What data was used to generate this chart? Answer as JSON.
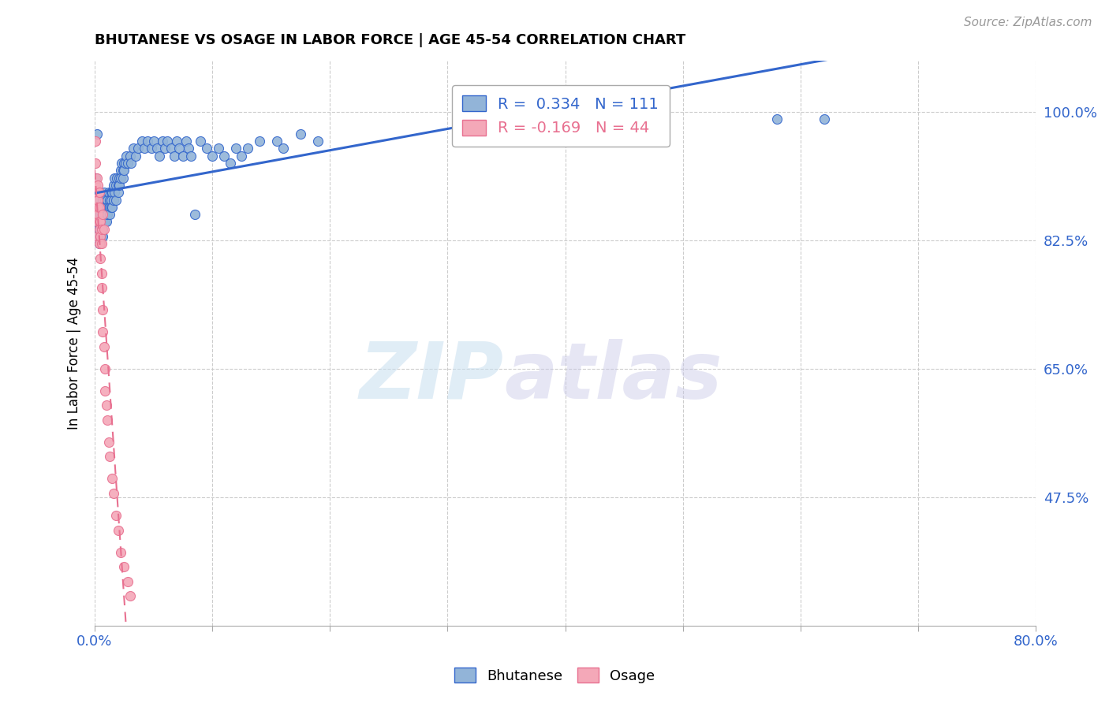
{
  "title": "BHUTANESE VS OSAGE IN LABOR FORCE | AGE 45-54 CORRELATION CHART",
  "source": "Source: ZipAtlas.com",
  "ylabel": "In Labor Force | Age 45-54",
  "ytick_labels": [
    "100.0%",
    "82.5%",
    "65.0%",
    "47.5%"
  ],
  "ytick_values": [
    1.0,
    0.825,
    0.65,
    0.475
  ],
  "xlim": [
    0.0,
    0.8
  ],
  "ylim": [
    0.3,
    1.07
  ],
  "blue_color": "#92B4D8",
  "pink_color": "#F4A8B8",
  "blue_line_color": "#3366CC",
  "pink_line_color": "#E87090",
  "legend_R_blue": "0.334",
  "legend_N_blue": "111",
  "legend_R_pink": "-0.169",
  "legend_N_pink": "44",
  "watermark_zip": "ZIP",
  "watermark_atlas": "atlas",
  "blue_points": [
    [
      0.001,
      0.91
    ],
    [
      0.002,
      0.97
    ],
    [
      0.002,
      0.88
    ],
    [
      0.002,
      0.85
    ],
    [
      0.003,
      0.86
    ],
    [
      0.003,
      0.84
    ],
    [
      0.003,
      0.83
    ],
    [
      0.004,
      0.85
    ],
    [
      0.004,
      0.84
    ],
    [
      0.004,
      0.83
    ],
    [
      0.004,
      0.82
    ],
    [
      0.005,
      0.86
    ],
    [
      0.005,
      0.85
    ],
    [
      0.005,
      0.84
    ],
    [
      0.005,
      0.83
    ],
    [
      0.005,
      0.82
    ],
    [
      0.006,
      0.87
    ],
    [
      0.006,
      0.86
    ],
    [
      0.006,
      0.85
    ],
    [
      0.006,
      0.84
    ],
    [
      0.006,
      0.83
    ],
    [
      0.007,
      0.88
    ],
    [
      0.007,
      0.87
    ],
    [
      0.007,
      0.86
    ],
    [
      0.007,
      0.84
    ],
    [
      0.007,
      0.83
    ],
    [
      0.008,
      0.89
    ],
    [
      0.008,
      0.87
    ],
    [
      0.008,
      0.86
    ],
    [
      0.008,
      0.85
    ],
    [
      0.009,
      0.88
    ],
    [
      0.009,
      0.87
    ],
    [
      0.009,
      0.86
    ],
    [
      0.009,
      0.85
    ],
    [
      0.01,
      0.87
    ],
    [
      0.01,
      0.86
    ],
    [
      0.01,
      0.85
    ],
    [
      0.011,
      0.88
    ],
    [
      0.011,
      0.87
    ],
    [
      0.011,
      0.86
    ],
    [
      0.012,
      0.89
    ],
    [
      0.012,
      0.87
    ],
    [
      0.013,
      0.88
    ],
    [
      0.013,
      0.87
    ],
    [
      0.013,
      0.86
    ],
    [
      0.014,
      0.89
    ],
    [
      0.014,
      0.88
    ],
    [
      0.014,
      0.87
    ],
    [
      0.015,
      0.89
    ],
    [
      0.015,
      0.87
    ],
    [
      0.016,
      0.9
    ],
    [
      0.016,
      0.88
    ],
    [
      0.017,
      0.91
    ],
    [
      0.017,
      0.89
    ],
    [
      0.018,
      0.9
    ],
    [
      0.018,
      0.88
    ],
    [
      0.019,
      0.91
    ],
    [
      0.02,
      0.9
    ],
    [
      0.02,
      0.89
    ],
    [
      0.021,
      0.91
    ],
    [
      0.021,
      0.9
    ],
    [
      0.022,
      0.92
    ],
    [
      0.022,
      0.91
    ],
    [
      0.023,
      0.93
    ],
    [
      0.024,
      0.92
    ],
    [
      0.024,
      0.91
    ],
    [
      0.025,
      0.93
    ],
    [
      0.025,
      0.92
    ],
    [
      0.026,
      0.93
    ],
    [
      0.027,
      0.94
    ],
    [
      0.028,
      0.93
    ],
    [
      0.03,
      0.94
    ],
    [
      0.031,
      0.93
    ],
    [
      0.033,
      0.95
    ],
    [
      0.035,
      0.94
    ],
    [
      0.037,
      0.95
    ],
    [
      0.04,
      0.96
    ],
    [
      0.042,
      0.95
    ],
    [
      0.045,
      0.96
    ],
    [
      0.048,
      0.95
    ],
    [
      0.05,
      0.96
    ],
    [
      0.053,
      0.95
    ],
    [
      0.055,
      0.94
    ],
    [
      0.058,
      0.96
    ],
    [
      0.06,
      0.95
    ],
    [
      0.062,
      0.96
    ],
    [
      0.065,
      0.95
    ],
    [
      0.068,
      0.94
    ],
    [
      0.07,
      0.96
    ],
    [
      0.072,
      0.95
    ],
    [
      0.075,
      0.94
    ],
    [
      0.078,
      0.96
    ],
    [
      0.08,
      0.95
    ],
    [
      0.082,
      0.94
    ],
    [
      0.085,
      0.86
    ],
    [
      0.09,
      0.96
    ],
    [
      0.095,
      0.95
    ],
    [
      0.1,
      0.94
    ],
    [
      0.105,
      0.95
    ],
    [
      0.11,
      0.94
    ],
    [
      0.115,
      0.93
    ],
    [
      0.12,
      0.95
    ],
    [
      0.125,
      0.94
    ],
    [
      0.13,
      0.95
    ],
    [
      0.14,
      0.96
    ],
    [
      0.58,
      0.99
    ],
    [
      0.62,
      0.99
    ],
    [
      0.155,
      0.96
    ],
    [
      0.16,
      0.95
    ],
    [
      0.175,
      0.97
    ],
    [
      0.19,
      0.96
    ]
  ],
  "pink_points": [
    [
      0.001,
      0.96
    ],
    [
      0.001,
      0.93
    ],
    [
      0.001,
      0.9
    ],
    [
      0.001,
      0.87
    ],
    [
      0.002,
      0.91
    ],
    [
      0.002,
      0.89
    ],
    [
      0.002,
      0.87
    ],
    [
      0.002,
      0.85
    ],
    [
      0.002,
      0.83
    ],
    [
      0.003,
      0.9
    ],
    [
      0.003,
      0.88
    ],
    [
      0.003,
      0.86
    ],
    [
      0.004,
      0.89
    ],
    [
      0.004,
      0.87
    ],
    [
      0.004,
      0.85
    ],
    [
      0.005,
      0.82
    ],
    [
      0.005,
      0.8
    ],
    [
      0.006,
      0.78
    ],
    [
      0.006,
      0.76
    ],
    [
      0.007,
      0.73
    ],
    [
      0.007,
      0.7
    ],
    [
      0.008,
      0.68
    ],
    [
      0.009,
      0.65
    ],
    [
      0.009,
      0.62
    ],
    [
      0.01,
      0.6
    ],
    [
      0.011,
      0.58
    ],
    [
      0.012,
      0.55
    ],
    [
      0.013,
      0.53
    ],
    [
      0.015,
      0.5
    ],
    [
      0.016,
      0.48
    ],
    [
      0.018,
      0.45
    ],
    [
      0.02,
      0.43
    ],
    [
      0.022,
      0.4
    ],
    [
      0.025,
      0.38
    ],
    [
      0.028,
      0.36
    ],
    [
      0.03,
      0.34
    ],
    [
      0.004,
      0.84
    ],
    [
      0.004,
      0.82
    ],
    [
      0.005,
      0.85
    ],
    [
      0.005,
      0.83
    ],
    [
      0.006,
      0.84
    ],
    [
      0.006,
      0.82
    ],
    [
      0.007,
      0.86
    ],
    [
      0.008,
      0.84
    ]
  ]
}
